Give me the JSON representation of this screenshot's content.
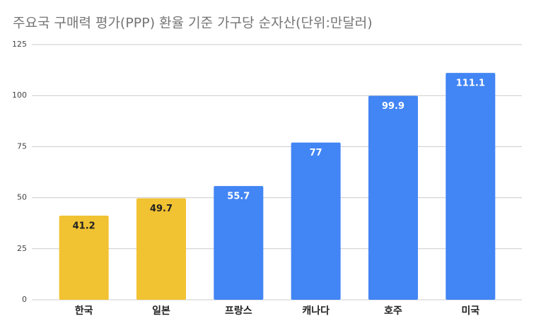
{
  "chart_data": {
    "type": "bar",
    "title": "주요국 구매력 평가(PPP) 환율 기준 가구당 순자산(단위:만달러)",
    "categories": [
      "한국",
      "일본",
      "프랑스",
      "캐나다",
      "호주",
      "미국"
    ],
    "values": [
      41.2,
      49.7,
      55.7,
      77,
      99.9,
      111.1
    ],
    "colors": [
      "#f1c232",
      "#f1c232",
      "#4285f4",
      "#4285f4",
      "#4285f4",
      "#4285f4"
    ],
    "value_label_colors": [
      "#222222",
      "#222222",
      "#ffffff",
      "#ffffff",
      "#ffffff",
      "#ffffff"
    ],
    "ylim": [
      0,
      125
    ],
    "yticks": [
      0,
      25,
      50,
      75,
      100,
      125
    ],
    "grid": true
  }
}
